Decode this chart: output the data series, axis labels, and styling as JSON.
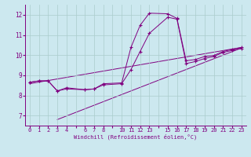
{
  "xlabel": "Windchill (Refroidissement éolien,°C)",
  "background_color": "#cce8ef",
  "line_color": "#800080",
  "grid_color": "#aacccc",
  "xlim": [
    -0.5,
    23.5
  ],
  "ylim": [
    6.5,
    12.5
  ],
  "yticks": [
    7,
    8,
    9,
    10,
    11,
    12
  ],
  "line1_x": [
    0,
    1,
    2,
    3,
    4,
    6,
    7,
    8,
    10,
    11,
    12,
    13,
    15,
    16,
    17,
    18,
    19,
    20,
    21,
    22,
    23
  ],
  "line1_y": [
    8.65,
    8.72,
    8.72,
    8.22,
    8.38,
    8.28,
    8.32,
    8.58,
    8.62,
    10.38,
    11.48,
    12.08,
    12.05,
    11.82,
    9.72,
    9.78,
    9.93,
    9.98,
    10.18,
    10.28,
    10.38
  ],
  "line2_x": [
    0,
    1,
    2,
    3,
    4,
    6,
    7,
    8,
    10,
    11,
    12,
    13,
    15,
    16,
    17,
    18,
    19,
    20,
    21,
    22,
    23
  ],
  "line2_y": [
    8.65,
    8.72,
    8.72,
    8.22,
    8.32,
    8.28,
    8.32,
    8.52,
    8.58,
    9.28,
    10.18,
    11.08,
    11.88,
    11.78,
    9.58,
    9.68,
    9.83,
    9.93,
    10.13,
    10.23,
    10.33
  ],
  "line3_x": [
    3,
    23
  ],
  "line3_y": [
    6.8,
    10.35
  ],
  "line4_x": [
    0,
    23
  ],
  "line4_y": [
    8.58,
    10.38
  ]
}
